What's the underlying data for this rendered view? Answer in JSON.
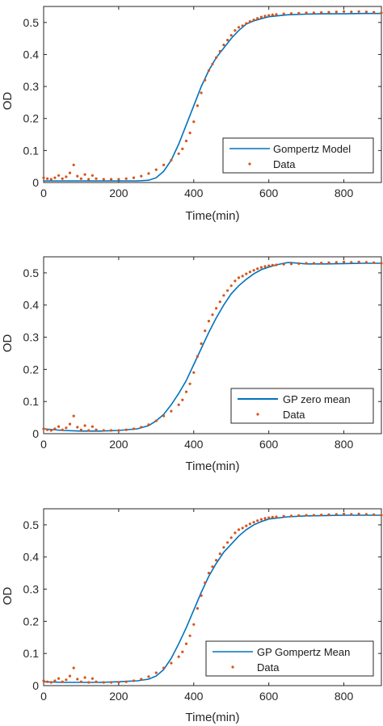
{
  "charts": [
    {
      "model_label": "Gompertz Model",
      "data_label": "Data",
      "xlabel": "Time(min)",
      "ylabel": "OD"
    },
    {
      "model_label": "GP zero mean",
      "data_label": "Data",
      "xlabel": "Time(min)",
      "ylabel": "OD"
    },
    {
      "model_label": "GP Gompertz Mean",
      "data_label": "Data",
      "xlabel": "Time(min)",
      "ylabel": "OD"
    }
  ],
  "colors": {
    "model": "#0072BD",
    "data": "#D95319",
    "axis": "#262626"
  },
  "chart_data": [
    {
      "type": "line",
      "xlabel": "Time(min)",
      "ylabel": "OD",
      "xlim": [
        0,
        900
      ],
      "ylim": [
        0,
        0.55
      ],
      "xticks": [
        "0",
        "200",
        "400",
        "600",
        "800"
      ],
      "yticks": [
        "0",
        "0.1",
        "0.2",
        "0.3",
        "0.4",
        "0.5"
      ],
      "legend": "bottom-right",
      "series": [
        {
          "name": "Gompertz Model",
          "kind": "line",
          "x": [
            0,
            100,
            200,
            250,
            280,
            300,
            320,
            340,
            360,
            380,
            400,
            420,
            440,
            460,
            480,
            500,
            520,
            540,
            560,
            580,
            600,
            650,
            700,
            750,
            800,
            850,
            900
          ],
          "y": [
            0.005,
            0.005,
            0.005,
            0.005,
            0.007,
            0.015,
            0.035,
            0.07,
            0.12,
            0.18,
            0.24,
            0.3,
            0.35,
            0.39,
            0.42,
            0.45,
            0.475,
            0.495,
            0.505,
            0.512,
            0.518,
            0.524,
            0.526,
            0.527,
            0.527,
            0.528,
            0.528
          ]
        },
        {
          "name": "Data",
          "kind": "scatter",
          "x": [
            0,
            10,
            20,
            30,
            40,
            50,
            60,
            70,
            80,
            90,
            100,
            110,
            120,
            130,
            140,
            160,
            180,
            200,
            220,
            240,
            260,
            280,
            300,
            320,
            340,
            360,
            370,
            380,
            390,
            400,
            410,
            420,
            430,
            440,
            450,
            460,
            470,
            480,
            490,
            500,
            510,
            520,
            530,
            540,
            550,
            560,
            570,
            580,
            590,
            600,
            610,
            620,
            640,
            660,
            680,
            700,
            720,
            740,
            760,
            780,
            800,
            820,
            840,
            860,
            880,
            900
          ],
          "y": [
            0.015,
            0.012,
            0.01,
            0.015,
            0.022,
            0.012,
            0.018,
            0.03,
            0.055,
            0.02,
            0.012,
            0.025,
            0.01,
            0.022,
            0.012,
            0.01,
            0.01,
            0.01,
            0.012,
            0.015,
            0.02,
            0.028,
            0.04,
            0.055,
            0.07,
            0.09,
            0.105,
            0.13,
            0.155,
            0.19,
            0.24,
            0.28,
            0.32,
            0.35,
            0.37,
            0.39,
            0.41,
            0.43,
            0.445,
            0.46,
            0.475,
            0.485,
            0.49,
            0.497,
            0.503,
            0.508,
            0.513,
            0.517,
            0.52,
            0.522,
            0.524,
            0.525,
            0.527,
            0.528,
            0.529,
            0.53,
            0.53,
            0.531,
            0.532,
            0.533,
            0.534,
            0.533,
            0.534,
            0.533,
            0.532,
            0.53
          ]
        }
      ]
    },
    {
      "type": "line",
      "xlabel": "Time(min)",
      "ylabel": "OD",
      "xlim": [
        0,
        900
      ],
      "ylim": [
        0,
        0.55
      ],
      "xticks": [
        "0",
        "200",
        "400",
        "600",
        "800"
      ],
      "yticks": [
        "0",
        "0.1",
        "0.2",
        "0.3",
        "0.4",
        "0.5"
      ],
      "legend": "bottom-right",
      "series": [
        {
          "name": "GP zero mean",
          "kind": "line",
          "x": [
            0,
            50,
            100,
            150,
            200,
            250,
            280,
            300,
            320,
            340,
            360,
            380,
            400,
            420,
            440,
            460,
            480,
            500,
            520,
            540,
            560,
            580,
            600,
            620,
            640,
            650,
            660,
            680,
            700,
            750,
            800,
            850,
            900
          ],
          "y": [
            0.015,
            0.01,
            0.008,
            0.008,
            0.01,
            0.015,
            0.025,
            0.04,
            0.06,
            0.09,
            0.125,
            0.165,
            0.215,
            0.265,
            0.315,
            0.36,
            0.4,
            0.435,
            0.46,
            0.48,
            0.497,
            0.51,
            0.518,
            0.525,
            0.53,
            0.532,
            0.532,
            0.53,
            0.528,
            0.528,
            0.529,
            0.53,
            0.53
          ]
        },
        {
          "name": "Data",
          "kind": "scatter",
          "x": [
            0,
            10,
            20,
            30,
            40,
            50,
            60,
            70,
            80,
            90,
            100,
            110,
            120,
            130,
            140,
            160,
            180,
            200,
            220,
            240,
            260,
            280,
            300,
            320,
            340,
            360,
            370,
            380,
            390,
            400,
            410,
            420,
            430,
            440,
            450,
            460,
            470,
            480,
            490,
            500,
            510,
            520,
            530,
            540,
            550,
            560,
            570,
            580,
            590,
            600,
            610,
            620,
            640,
            660,
            680,
            700,
            720,
            740,
            760,
            780,
            800,
            820,
            840,
            860,
            880,
            900
          ],
          "y": [
            0.015,
            0.012,
            0.01,
            0.015,
            0.022,
            0.012,
            0.018,
            0.03,
            0.055,
            0.02,
            0.012,
            0.025,
            0.01,
            0.022,
            0.012,
            0.01,
            0.01,
            0.01,
            0.012,
            0.015,
            0.02,
            0.028,
            0.04,
            0.055,
            0.07,
            0.09,
            0.105,
            0.13,
            0.155,
            0.19,
            0.24,
            0.28,
            0.32,
            0.35,
            0.37,
            0.39,
            0.41,
            0.43,
            0.445,
            0.46,
            0.475,
            0.485,
            0.49,
            0.497,
            0.503,
            0.508,
            0.513,
            0.517,
            0.52,
            0.522,
            0.524,
            0.525,
            0.527,
            0.528,
            0.529,
            0.53,
            0.53,
            0.531,
            0.532,
            0.533,
            0.534,
            0.533,
            0.534,
            0.533,
            0.532,
            0.53
          ]
        }
      ]
    },
    {
      "type": "line",
      "xlabel": "Time(min)",
      "ylabel": "OD",
      "xlim": [
        0,
        900
      ],
      "ylim": [
        0,
        0.55
      ],
      "xticks": [
        "0",
        "200",
        "400",
        "600",
        "800"
      ],
      "yticks": [
        "0",
        "0.1",
        "0.2",
        "0.3",
        "0.4",
        "0.5"
      ],
      "legend": "bottom-right",
      "series": [
        {
          "name": "GP Gompertz Mean",
          "kind": "line",
          "x": [
            0,
            50,
            100,
            150,
            200,
            250,
            280,
            300,
            320,
            340,
            360,
            380,
            400,
            420,
            440,
            460,
            480,
            500,
            520,
            540,
            560,
            580,
            600,
            650,
            700,
            750,
            800,
            850,
            900
          ],
          "y": [
            0.012,
            0.01,
            0.01,
            0.01,
            0.012,
            0.015,
            0.02,
            0.03,
            0.05,
            0.085,
            0.13,
            0.18,
            0.235,
            0.29,
            0.34,
            0.38,
            0.415,
            0.44,
            0.465,
            0.485,
            0.5,
            0.51,
            0.518,
            0.525,
            0.528,
            0.529,
            0.53,
            0.53,
            0.53
          ]
        },
        {
          "name": "Data",
          "kind": "scatter",
          "x": [
            0,
            10,
            20,
            30,
            40,
            50,
            60,
            70,
            80,
            90,
            100,
            110,
            120,
            130,
            140,
            160,
            180,
            200,
            220,
            240,
            260,
            280,
            300,
            320,
            340,
            360,
            370,
            380,
            390,
            400,
            410,
            420,
            430,
            440,
            450,
            460,
            470,
            480,
            490,
            500,
            510,
            520,
            530,
            540,
            550,
            560,
            570,
            580,
            590,
            600,
            610,
            620,
            640,
            660,
            680,
            700,
            720,
            740,
            760,
            780,
            800,
            820,
            840,
            860,
            880,
            900
          ],
          "y": [
            0.015,
            0.012,
            0.01,
            0.015,
            0.022,
            0.012,
            0.018,
            0.03,
            0.055,
            0.02,
            0.012,
            0.025,
            0.01,
            0.022,
            0.012,
            0.01,
            0.01,
            0.01,
            0.012,
            0.015,
            0.02,
            0.028,
            0.04,
            0.055,
            0.07,
            0.09,
            0.105,
            0.13,
            0.155,
            0.19,
            0.24,
            0.28,
            0.32,
            0.35,
            0.37,
            0.39,
            0.41,
            0.43,
            0.445,
            0.46,
            0.475,
            0.485,
            0.49,
            0.497,
            0.503,
            0.508,
            0.513,
            0.517,
            0.52,
            0.522,
            0.524,
            0.525,
            0.527,
            0.528,
            0.529,
            0.53,
            0.53,
            0.531,
            0.532,
            0.533,
            0.534,
            0.533,
            0.534,
            0.533,
            0.532,
            0.53
          ]
        }
      ]
    }
  ]
}
